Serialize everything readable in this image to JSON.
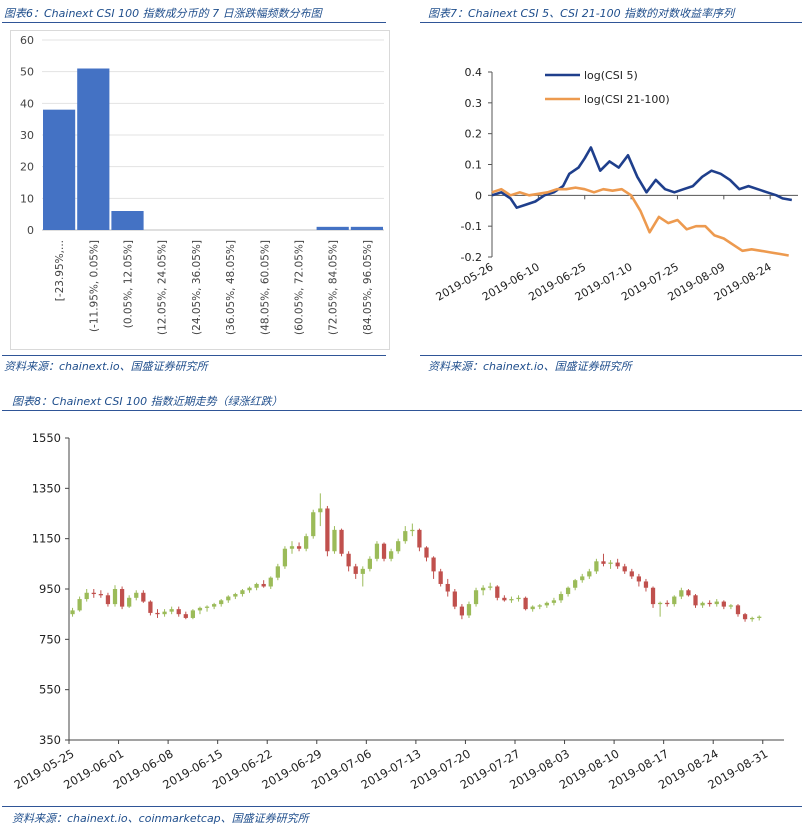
{
  "captions": {
    "fig6": "图表6：Chainext CSI 100 指数成分币的 7 日涨跌幅频数分布图",
    "fig7": "图表7：Chainext CSI 5、CSI 21-100 指数的对数收益率序列",
    "fig8": "图表8：Chainext CSI 100 指数近期走势（绿涨红跌）",
    "source_top_left": "资料来源：chainext.io、国盛证券研究所",
    "source_top_right": "资料来源：chainext.io、国盛证券研究所",
    "source_bottom": "资料来源：chainext.io、coinmarketcap、国盛证券研究所"
  },
  "chart_data": [
    {
      "type": "bar",
      "title": "",
      "categories": [
        "[-23.95%,...",
        "(-11.95%, 0.05%]",
        "(0.05%, 12.05%]",
        "(12.05%, 24.05%]",
        "(24.05%, 36.05%]",
        "(36.05%, 48.05%]",
        "(48.05%, 60.05%]",
        "(60.05%, 72.05%]",
        "(72.05%, 84.05%]",
        "(84.05%, 96.05%]"
      ],
      "values": [
        38,
        51,
        6,
        0,
        0,
        0,
        0,
        0,
        1,
        1
      ],
      "ylim": [
        0,
        60
      ],
      "yticks": [
        "0",
        "10",
        "20",
        "30",
        "40",
        "50",
        "60"
      ],
      "color": "#4472c4",
      "grid": true
    },
    {
      "type": "line",
      "title": "",
      "x_ticks": [
        "2019-05-26",
        "2019-06-10",
        "2019-06-25",
        "2019-07-10",
        "2019-07-25",
        "2019-08-09",
        "2019-08-24"
      ],
      "x_range": [
        "2019-05-26",
        "2019-09-02"
      ],
      "ylim": [
        -0.2,
        0.4
      ],
      "yticks": [
        "0.4",
        "0.3",
        "0.2",
        "0.1",
        "0",
        "-0.1",
        "-0.2"
      ],
      "legend_position": "top-left",
      "series": [
        {
          "name": "log(CSI 5)",
          "color": "#1f3f8c",
          "points": [
            [
              "2019-05-26",
              0.0
            ],
            [
              "2019-05-29",
              0.01
            ],
            [
              "2019-06-01",
              -0.01
            ],
            [
              "2019-06-03",
              -0.04
            ],
            [
              "2019-06-06",
              -0.03
            ],
            [
              "2019-06-09",
              -0.02
            ],
            [
              "2019-06-12",
              0.0
            ],
            [
              "2019-06-15",
              0.01
            ],
            [
              "2019-06-18",
              0.03
            ],
            [
              "2019-06-20",
              0.07
            ],
            [
              "2019-06-23",
              0.09
            ],
            [
              "2019-06-25",
              0.12
            ],
            [
              "2019-06-27",
              0.155
            ],
            [
              "2019-06-30",
              0.08
            ],
            [
              "2019-07-03",
              0.11
            ],
            [
              "2019-07-06",
              0.09
            ],
            [
              "2019-07-09",
              0.13
            ],
            [
              "2019-07-12",
              0.06
            ],
            [
              "2019-07-15",
              0.01
            ],
            [
              "2019-07-18",
              0.05
            ],
            [
              "2019-07-21",
              0.02
            ],
            [
              "2019-07-24",
              0.01
            ],
            [
              "2019-07-27",
              0.02
            ],
            [
              "2019-07-30",
              0.03
            ],
            [
              "2019-08-02",
              0.06
            ],
            [
              "2019-08-05",
              0.08
            ],
            [
              "2019-08-08",
              0.07
            ],
            [
              "2019-08-11",
              0.05
            ],
            [
              "2019-08-14",
              0.02
            ],
            [
              "2019-08-17",
              0.03
            ],
            [
              "2019-08-20",
              0.02
            ],
            [
              "2019-08-23",
              0.01
            ],
            [
              "2019-08-26",
              0.0
            ],
            [
              "2019-08-28",
              -0.01
            ],
            [
              "2019-08-31",
              -0.015
            ]
          ]
        },
        {
          "name": "log(CSI 21-100)",
          "color": "#ed9a4f",
          "points": [
            [
              "2019-05-26",
              0.01
            ],
            [
              "2019-05-29",
              0.02
            ],
            [
              "2019-06-01",
              0.0
            ],
            [
              "2019-06-04",
              0.01
            ],
            [
              "2019-06-07",
              0.0
            ],
            [
              "2019-06-10",
              0.005
            ],
            [
              "2019-06-13",
              0.01
            ],
            [
              "2019-06-16",
              0.02
            ],
            [
              "2019-06-19",
              0.02
            ],
            [
              "2019-06-22",
              0.025
            ],
            [
              "2019-06-25",
              0.02
            ],
            [
              "2019-06-28",
              0.01
            ],
            [
              "2019-07-01",
              0.02
            ],
            [
              "2019-07-04",
              0.015
            ],
            [
              "2019-07-07",
              0.02
            ],
            [
              "2019-07-10",
              0.0
            ],
            [
              "2019-07-13",
              -0.05
            ],
            [
              "2019-07-16",
              -0.12
            ],
            [
              "2019-07-19",
              -0.07
            ],
            [
              "2019-07-22",
              -0.09
            ],
            [
              "2019-07-25",
              -0.08
            ],
            [
              "2019-07-28",
              -0.11
            ],
            [
              "2019-07-31",
              -0.1
            ],
            [
              "2019-08-03",
              -0.1
            ],
            [
              "2019-08-06",
              -0.13
            ],
            [
              "2019-08-09",
              -0.14
            ],
            [
              "2019-08-12",
              -0.16
            ],
            [
              "2019-08-15",
              -0.18
            ],
            [
              "2019-08-18",
              -0.175
            ],
            [
              "2019-08-21",
              -0.18
            ],
            [
              "2019-08-24",
              -0.185
            ],
            [
              "2019-08-27",
              -0.19
            ],
            [
              "2019-08-30",
              -0.195
            ]
          ]
        }
      ]
    },
    {
      "type": "candlestick",
      "title": "",
      "x_ticks": [
        "2019-05-25",
        "2019-06-01",
        "2019-06-08",
        "2019-06-15",
        "2019-06-22",
        "2019-06-29",
        "2019-07-06",
        "2019-07-13",
        "2019-07-20",
        "2019-07-27",
        "2019-08-03",
        "2019-08-10",
        "2019-08-17",
        "2019-08-24",
        "2019-08-31"
      ],
      "x_range": [
        "2019-05-25",
        "2019-09-03"
      ],
      "ylim": [
        350,
        1550
      ],
      "yticks": [
        "1550",
        "1350",
        "1150",
        "950",
        "750",
        "550",
        "350"
      ],
      "up_color": "#9bbb59",
      "down_color": "#c0504d",
      "series": [
        {
          "name": "",
          "ohlc": [
            [
              850,
              875,
              840,
              865
            ],
            [
              865,
              920,
              860,
              910
            ],
            [
              910,
              950,
              900,
              935
            ],
            [
              935,
              950,
              915,
              930
            ],
            [
              930,
              945,
              915,
              925
            ],
            [
              925,
              935,
              880,
              890
            ],
            [
              890,
              965,
              880,
              950
            ],
            [
              950,
              960,
              870,
              880
            ],
            [
              880,
              925,
              875,
              915
            ],
            [
              915,
              945,
              905,
              935
            ],
            [
              935,
              945,
              895,
              900
            ],
            [
              900,
              905,
              845,
              855
            ],
            [
              855,
              870,
              835,
              850
            ],
            [
              850,
              870,
              840,
              860
            ],
            [
              860,
              880,
              850,
              870
            ],
            [
              870,
              880,
              840,
              850
            ],
            [
              850,
              860,
              830,
              835
            ],
            [
              835,
              870,
              830,
              865
            ],
            [
              865,
              880,
              850,
              875
            ],
            [
              875,
              885,
              860,
              880
            ],
            [
              880,
              895,
              870,
              890
            ],
            [
              890,
              910,
              880,
              905
            ],
            [
              905,
              925,
              895,
              920
            ],
            [
              920,
              935,
              910,
              930
            ],
            [
              930,
              950,
              920,
              945
            ],
            [
              945,
              960,
              935,
              955
            ],
            [
              955,
              975,
              945,
              970
            ],
            [
              970,
              985,
              955,
              960
            ],
            [
              960,
              1000,
              950,
              995
            ],
            [
              995,
              1050,
              985,
              1040
            ],
            [
              1040,
              1120,
              1030,
              1110
            ],
            [
              1110,
              1140,
              1090,
              1120
            ],
            [
              1120,
              1135,
              1100,
              1110
            ],
            [
              1110,
              1170,
              1100,
              1160
            ],
            [
              1160,
              1265,
              1150,
              1255
            ],
            [
              1255,
              1330,
              1200,
              1270
            ],
            [
              1270,
              1280,
              1080,
              1100
            ],
            [
              1100,
              1200,
              1090,
              1185
            ],
            [
              1185,
              1190,
              1080,
              1090
            ],
            [
              1090,
              1100,
              1020,
              1040
            ],
            [
              1040,
              1050,
              990,
              1010
            ],
            [
              1010,
              1040,
              960,
              1030
            ],
            [
              1030,
              1080,
              1020,
              1070
            ],
            [
              1070,
              1140,
              1060,
              1130
            ],
            [
              1130,
              1135,
              1060,
              1070
            ],
            [
              1070,
              1110,
              1060,
              1100
            ],
            [
              1100,
              1150,
              1090,
              1140
            ],
            [
              1140,
              1200,
              1130,
              1180
            ],
            [
              1180,
              1210,
              1160,
              1185
            ],
            [
              1185,
              1190,
              1100,
              1115
            ],
            [
              1115,
              1120,
              1060,
              1075
            ],
            [
              1075,
              1080,
              990,
              1020
            ],
            [
              1020,
              1030,
              960,
              970
            ],
            [
              970,
              990,
              920,
              940
            ],
            [
              940,
              950,
              870,
              880
            ],
            [
              880,
              890,
              830,
              845
            ],
            [
              845,
              900,
              835,
              890
            ],
            [
              890,
              955,
              880,
              945
            ],
            [
              945,
              965,
              925,
              955
            ],
            [
              955,
              975,
              945,
              960
            ],
            [
              960,
              965,
              905,
              915
            ],
            [
              915,
              925,
              900,
              905
            ],
            [
              905,
              920,
              895,
              910
            ],
            [
              910,
              925,
              900,
              915
            ],
            [
              915,
              920,
              865,
              870
            ],
            [
              870,
              885,
              860,
              880
            ],
            [
              880,
              890,
              870,
              885
            ],
            [
              885,
              900,
              875,
              895
            ],
            [
              895,
              915,
              885,
              905
            ],
            [
              905,
              940,
              895,
              930
            ],
            [
              930,
              960,
              920,
              955
            ],
            [
              955,
              990,
              945,
              985
            ],
            [
              985,
              1010,
              975,
              1000
            ],
            [
              1000,
              1030,
              990,
              1020
            ],
            [
              1020,
              1070,
              1010,
              1060
            ],
            [
              1060,
              1090,
              1040,
              1050
            ],
            [
              1050,
              1065,
              1030,
              1055
            ],
            [
              1055,
              1070,
              1030,
              1040
            ],
            [
              1040,
              1050,
              1010,
              1020
            ],
            [
              1020,
              1030,
              990,
              1000
            ],
            [
              1000,
              1010,
              960,
              980
            ],
            [
              980,
              990,
              940,
              955
            ],
            [
              955,
              960,
              875,
              890
            ],
            [
              890,
              900,
              840,
              895
            ],
            [
              895,
              905,
              880,
              890
            ],
            [
              890,
              925,
              880,
              920
            ],
            [
              920,
              955,
              910,
              945
            ],
            [
              945,
              950,
              920,
              925
            ],
            [
              925,
              930,
              875,
              885
            ],
            [
              885,
              900,
              875,
              895
            ],
            [
              895,
              905,
              880,
              890
            ],
            [
              890,
              910,
              880,
              900
            ],
            [
              900,
              905,
              870,
              880
            ],
            [
              880,
              890,
              870,
              885
            ],
            [
              885,
              890,
              840,
              850
            ],
            [
              850,
              855,
              820,
              830
            ],
            [
              830,
              840,
              820,
              835
            ],
            [
              835,
              845,
              825,
              840
            ]
          ]
        }
      ]
    }
  ]
}
